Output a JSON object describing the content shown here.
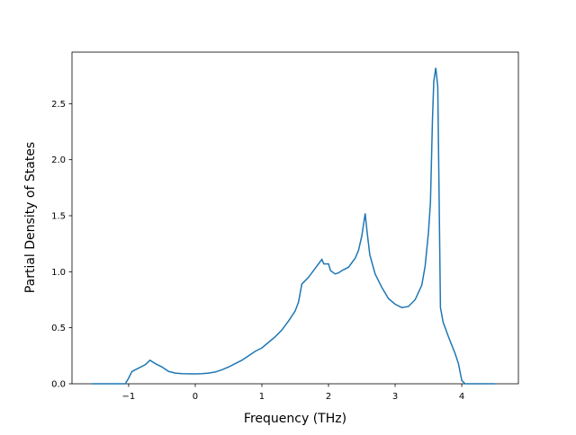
{
  "chart_data": {
    "type": "line",
    "x_label": "Frequency (THz)",
    "y_label": "Partial Density of States",
    "x": [
      -1.55,
      -1.05,
      -1.0,
      -0.95,
      -0.85,
      -0.75,
      -0.68,
      -0.6,
      -0.5,
      -0.4,
      -0.3,
      -0.2,
      0,
      0.1,
      0.2,
      0.3,
      0.4,
      0.5,
      0.6,
      0.7,
      0.8,
      0.9,
      1.0,
      1.1,
      1.2,
      1.3,
      1.4,
      1.5,
      1.55,
      1.6,
      1.7,
      1.8,
      1.9,
      1.93,
      2.0,
      2.03,
      2.1,
      2.15,
      2.2,
      2.3,
      2.4,
      2.45,
      2.5,
      2.55,
      2.58,
      2.62,
      2.7,
      2.8,
      2.9,
      3.0,
      3.1,
      3.2,
      3.3,
      3.4,
      3.45,
      3.5,
      3.53,
      3.56,
      3.58,
      3.61,
      3.64,
      3.68,
      3.72,
      3.8,
      3.9,
      3.95,
      4.0,
      4.05,
      4.5
    ],
    "series": [
      {
        "color": "#1f77b4",
        "values": [
          0,
          0,
          0.05,
          0.11,
          0.14,
          0.17,
          0.21,
          0.18,
          0.15,
          0.11,
          0.095,
          0.09,
          0.088,
          0.09,
          0.095,
          0.105,
          0.125,
          0.15,
          0.18,
          0.21,
          0.25,
          0.29,
          0.32,
          0.37,
          0.42,
          0.48,
          0.56,
          0.65,
          0.73,
          0.89,
          0.95,
          1.03,
          1.11,
          1.07,
          1.07,
          1.01,
          0.98,
          0.99,
          1.01,
          1.04,
          1.12,
          1.19,
          1.32,
          1.52,
          1.35,
          1.15,
          0.98,
          0.86,
          0.76,
          0.71,
          0.68,
          0.69,
          0.75,
          0.88,
          1.05,
          1.35,
          1.62,
          2.35,
          2.7,
          2.82,
          2.65,
          0.68,
          0.55,
          0.42,
          0.27,
          0.18,
          0.03,
          0,
          0
        ]
      }
    ],
    "xlim": [
      -1.85,
      4.85
    ],
    "ylim": [
      0,
      2.96
    ],
    "xticks": [
      {
        "value": -1,
        "label": "−1"
      },
      0,
      1,
      2,
      3,
      4
    ],
    "yticks": [
      {
        "value": 0,
        "label": "0.0"
      },
      0.5,
      {
        "value": 1,
        "label": "1.0"
      },
      1.5,
      {
        "value": 2,
        "label": "2.0"
      },
      2.5
    ]
  }
}
